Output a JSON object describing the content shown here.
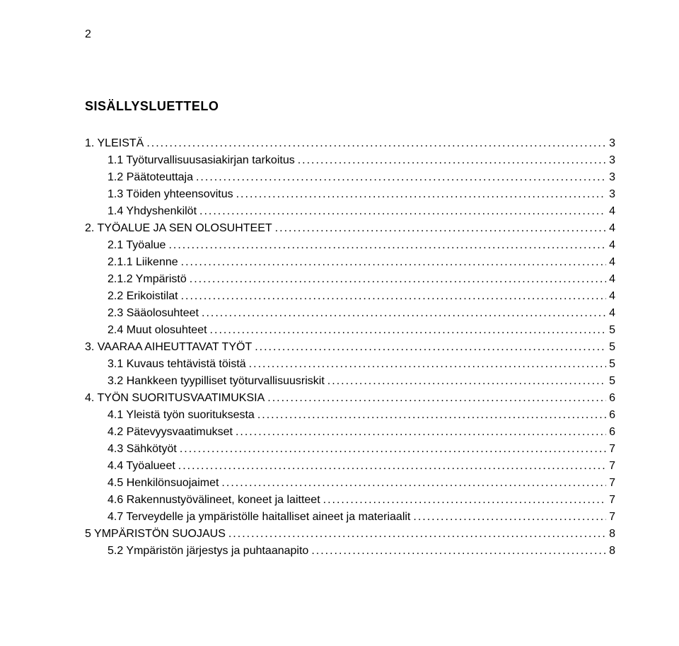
{
  "page_number": "2",
  "heading": "SISÄLLYSLUETTELO",
  "text_color": "#000000",
  "background_color": "#ffffff",
  "font_family": "Arial, Helvetica, sans-serif",
  "heading_fontsize": 18,
  "body_fontsize": 16,
  "toc": [
    {
      "indent": 0,
      "label": "1.   YLEISTÄ",
      "page": "3"
    },
    {
      "indent": 1,
      "label": "1.1   Työturvallisuusasiakirjan tarkoitus",
      "page": "3"
    },
    {
      "indent": 1,
      "label": "1.2   Päätoteuttaja",
      "page": "3"
    },
    {
      "indent": 1,
      "label": "1.3   Töiden yhteensovitus",
      "page": "3"
    },
    {
      "indent": 1,
      "label": "1.4   Yhdyshenkilöt",
      "page": "4"
    },
    {
      "indent": 0,
      "label": "2.   TYÖALUE JA SEN OLOSUHTEET",
      "page": "4"
    },
    {
      "indent": 1,
      "label": "2.1   Työalue",
      "page": "4"
    },
    {
      "indent": 2,
      "label": "2.1.1   Liikenne",
      "page": "4"
    },
    {
      "indent": 2,
      "label": "2.1.2   Ympäristö",
      "page": "4"
    },
    {
      "indent": 1,
      "label": "2.2   Erikoistilat",
      "page": "4"
    },
    {
      "indent": 1,
      "label": "2.3   Sääolosuhteet",
      "page": "4"
    },
    {
      "indent": 1,
      "label": "2.4   Muut olosuhteet",
      "page": "5"
    },
    {
      "indent": 0,
      "label": "3.   VAARAA AIHEUTTAVAT TYÖT",
      "page": "5"
    },
    {
      "indent": 1,
      "label": "3.1   Kuvaus tehtävistä töistä",
      "page": "5"
    },
    {
      "indent": 1,
      "label": "3.2   Hankkeen tyypilliset työturvallisuusriskit",
      "page": "5"
    },
    {
      "indent": 0,
      "label": "4.   TYÖN SUORITUSVAATIMUKSIA",
      "page": "6"
    },
    {
      "indent": 1,
      "label": "4.1   Yleistä työn suorituksesta",
      "page": "6"
    },
    {
      "indent": 1,
      "label": "4.2   Pätevyysvaatimukset",
      "page": "6"
    },
    {
      "indent": 1,
      "label": "4.3   Sähkötyöt",
      "page": "7"
    },
    {
      "indent": 1,
      "label": "4.4   Työalueet",
      "page": "7"
    },
    {
      "indent": 1,
      "label": "4.5   Henkilönsuojaimet",
      "page": "7"
    },
    {
      "indent": 1,
      "label": "4.6   Rakennustyövälineet, koneet ja laitteet",
      "page": "7"
    },
    {
      "indent": 1,
      "label": "4.7   Terveydelle ja ympäristölle haitalliset aineet ja materiaalit",
      "page": "7"
    },
    {
      "indent": 0,
      "label": "5   YMPÄRISTÖN SUOJAUS",
      "page": "8"
    },
    {
      "indent": 1,
      "label": "5.2   Ympäristön järjestys ja puhtaanapito",
      "page": "8"
    }
  ]
}
